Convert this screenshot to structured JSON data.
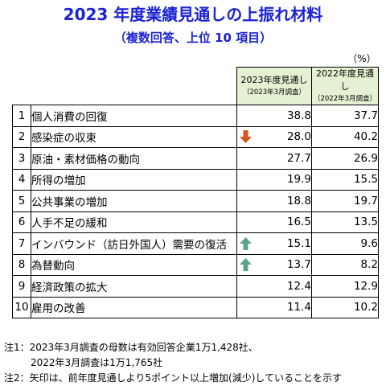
{
  "title": "2023 年度業績見通しの上振れ材料",
  "subtitle": "（複数回答、上位 10 項目）",
  "unit": "（%）",
  "columns": [
    {
      "main": "2023年度見通し",
      "sub": "（2023年3月調査）"
    },
    {
      "main": "2022年度見通し",
      "sub": "（2022年3月調査）"
    }
  ],
  "chart_data": {
    "type": "table",
    "title": "2023 年度業績見通しの上振れ材料",
    "subtitle": "（複数回答、上位 10 項目）",
    "unit": "（%）",
    "series": [
      {
        "name": "2023年度見通し（2023年3月調査）",
        "values": [
          38.8,
          28.0,
          27.7,
          19.9,
          18.8,
          16.5,
          15.1,
          13.7,
          12.4,
          11.4
        ]
      },
      {
        "name": "2022年度見通し（2022年3月調査）",
        "values": [
          37.7,
          40.2,
          26.9,
          15.5,
          19.7,
          13.5,
          9.6,
          8.2,
          12.9,
          10.2
        ]
      }
    ],
    "rows": [
      {
        "rank": "1",
        "item": "個人消費の回復",
        "v2023": "38.8",
        "v2022": "37.7",
        "arrow": ""
      },
      {
        "rank": "2",
        "item": "感染症の収束",
        "v2023": "28.0",
        "v2022": "40.2",
        "arrow": "down"
      },
      {
        "rank": "3",
        "item": "原油・素材価格の動向",
        "v2023": "27.7",
        "v2022": "26.9",
        "arrow": ""
      },
      {
        "rank": "4",
        "item": "所得の増加",
        "v2023": "19.9",
        "v2022": "15.5",
        "arrow": ""
      },
      {
        "rank": "5",
        "item": "公共事業の増加",
        "v2023": "18.8",
        "v2022": "19.7",
        "arrow": ""
      },
      {
        "rank": "6",
        "item": "人手不足の緩和",
        "v2023": "16.5",
        "v2022": "13.5",
        "arrow": ""
      },
      {
        "rank": "7",
        "item": "インバウンド（訪日外国人）需要の復活",
        "v2023": "15.1",
        "v2022": "9.6",
        "arrow": "up"
      },
      {
        "rank": "8",
        "item": "為替動向",
        "v2023": "13.7",
        "v2022": "8.2",
        "arrow": "up"
      },
      {
        "rank": "9",
        "item": "経済政策の拡大",
        "v2023": "12.4",
        "v2022": "12.9",
        "arrow": ""
      },
      {
        "rank": "10",
        "item": "雇用の改善",
        "v2023": "11.4",
        "v2022": "10.2",
        "arrow": ""
      }
    ]
  },
  "notes": {
    "note1_line1": "注1：2023年3月調査の母数は有効回答企業1万1,428社、",
    "note1_line2": "2022年3月調査は1万1,765社",
    "note2": "注2：矢印は、前年度見通しより5ポイント以上増加(減少)していることを示す"
  },
  "colors": {
    "title": "#1a22d6",
    "header_bg": "#e4f1d3",
    "arrow_up": "#5da38c",
    "arrow_down": "#d8531e"
  }
}
